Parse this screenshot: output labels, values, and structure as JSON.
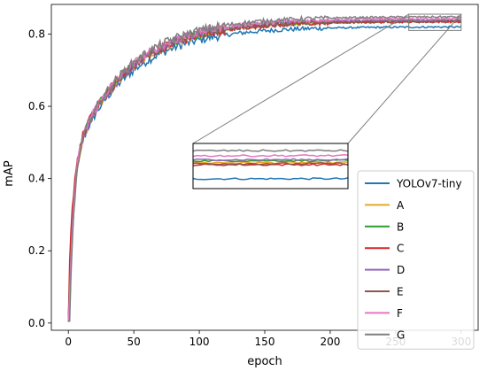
{
  "chart_data": {
    "type": "line",
    "title": "",
    "xlabel": "epoch",
    "ylabel": "mAP",
    "xlim": [
      -13,
      313
    ],
    "ylim": [
      -0.02,
      0.882
    ],
    "x_ticks": [
      0,
      50,
      100,
      150,
      200,
      250,
      300
    ],
    "y_ticks": [
      0.0,
      0.2,
      0.4,
      0.6,
      0.8
    ],
    "y_tick_labels": [
      "0.0",
      "0.2",
      "0.4",
      "0.6",
      "0.8"
    ],
    "grid": false,
    "legend_position": "lower-right",
    "inset": {
      "xlim": [
        260,
        300
      ],
      "ylim": [
        0.81,
        0.855
      ],
      "position": "center"
    },
    "series": [
      {
        "name": "YOLOv7-tiny",
        "color": "#1f77b4",
        "final": 0.82
      },
      {
        "name": "A",
        "color": "#e8a628",
        "final": 0.836
      },
      {
        "name": "B",
        "color": "#2ca02c",
        "final": 0.838
      },
      {
        "name": "C",
        "color": "#d62728",
        "final": 0.834
      },
      {
        "name": "D",
        "color": "#9467bd",
        "final": 0.839
      },
      {
        "name": "E",
        "color": "#8c564b",
        "final": 0.835
      },
      {
        "name": "F",
        "color": "#e377c2",
        "final": 0.843
      },
      {
        "name": "G",
        "color": "#7f7f7f",
        "final": 0.848
      }
    ]
  }
}
